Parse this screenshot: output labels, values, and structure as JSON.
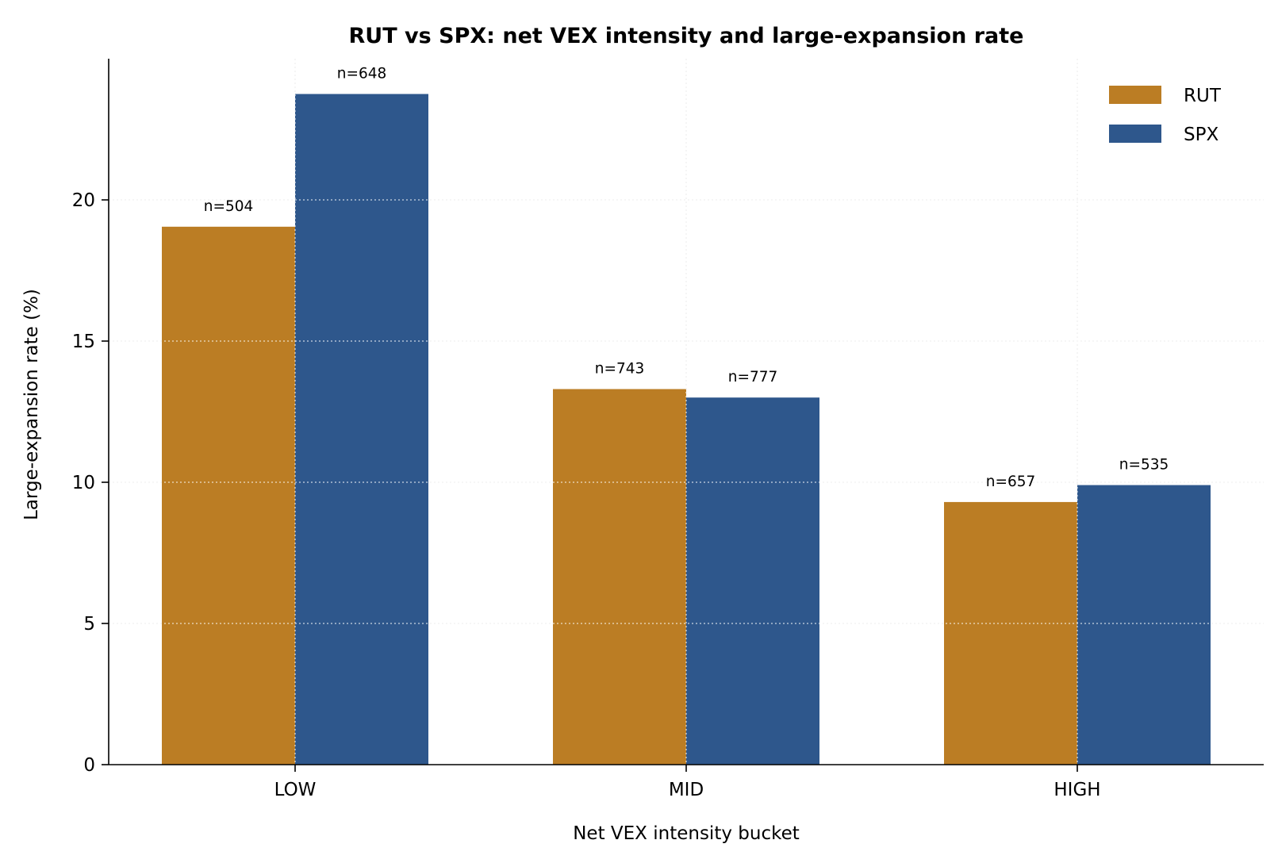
{
  "chart_data": {
    "type": "bar",
    "title": "RUT vs SPX: net VEX intensity and large-expansion rate",
    "xlabel": "Net VEX intensity bucket",
    "ylabel": "Large-expansion rate (%)",
    "categories": [
      "LOW",
      "MID",
      "HIGH"
    ],
    "ylim": [
      0,
      25
    ],
    "yticks": [
      0,
      5,
      10,
      15,
      20
    ],
    "grid": true,
    "legend": "top-right",
    "series": [
      {
        "name": "RUT",
        "color": "#bb7d24",
        "values": [
          19.05,
          13.3,
          9.3
        ],
        "labels": [
          "n=504",
          "n=743",
          "n=657"
        ]
      },
      {
        "name": "SPX",
        "color": "#2e578c",
        "values": [
          23.75,
          13.0,
          9.9
        ],
        "labels": [
          "n=648",
          "n=777",
          "n=535"
        ]
      }
    ]
  }
}
